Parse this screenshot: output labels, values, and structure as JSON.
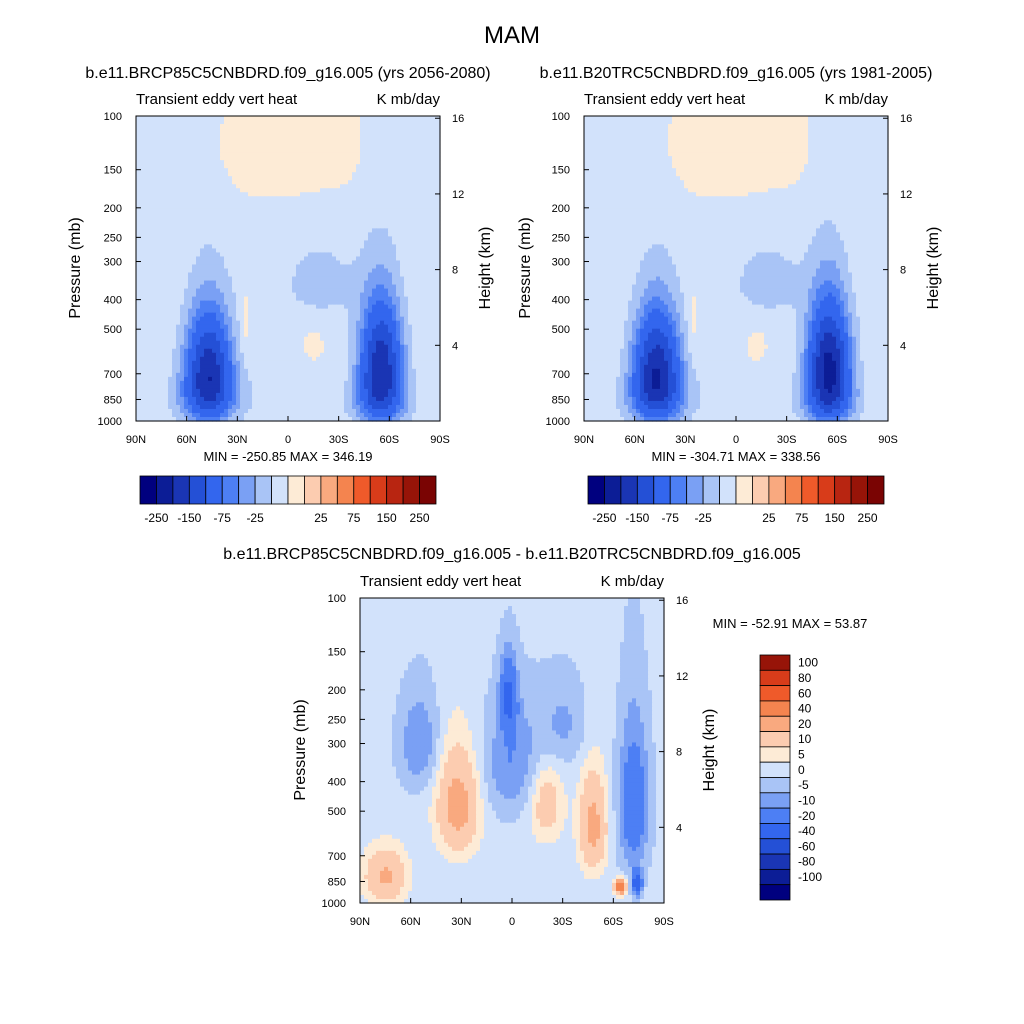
{
  "figure": {
    "title": "MAM"
  },
  "chart_data": [
    {
      "type": "heatmap",
      "id": "future",
      "title": "b.e11.BRCP85C5CNBDRD.f09_g16.005 (yrs 2056-2080)",
      "left_label": "Transient eddy vert heat",
      "right_label": "K mb/day",
      "xlabel": "",
      "ylabel": "Pressure (mb)",
      "ylabel_right": "Height (km)",
      "x_ticks": [
        "90N",
        "60N",
        "30N",
        "0",
        "30S",
        "60S",
        "90S"
      ],
      "x_range": [
        90,
        -90
      ],
      "y_ticks": [
        "100",
        "150",
        "200",
        "250",
        "300",
        "400",
        "500",
        "700",
        "850",
        "1000"
      ],
      "y_range_mb": [
        1000,
        100
      ],
      "height_ticks": [
        "4",
        "8",
        "12",
        "16"
      ],
      "stats": "MIN = -250.85  MAX = 346.19",
      "min": -250.85,
      "max": 346.19,
      "colorbar_labels": [
        "-250",
        "-150",
        "-75",
        "-25",
        "25",
        "75",
        "150",
        "250"
      ],
      "features": [
        {
          "desc": "NH mid-latitude minimum",
          "lat": 48,
          "p_mb": 700,
          "value": -210
        },
        {
          "desc": "SH mid-latitude minimum",
          "lat": -55,
          "p_mb": 650,
          "value": -220
        },
        {
          "desc": "tropical positive",
          "lat": -15,
          "p_mb": 580,
          "value": 12
        }
      ]
    },
    {
      "type": "heatmap",
      "id": "historical",
      "title": "b.e11.B20TRC5CNBDRD.f09_g16.005 (yrs 1981-2005)",
      "left_label": "Transient eddy vert heat",
      "right_label": "K mb/day",
      "xlabel": "",
      "ylabel": "Pressure (mb)",
      "ylabel_right": "Height (km)",
      "x_ticks": [
        "90N",
        "60N",
        "30N",
        "0",
        "30S",
        "60S",
        "90S"
      ],
      "x_range": [
        90,
        -90
      ],
      "y_ticks": [
        "100",
        "150",
        "200",
        "250",
        "300",
        "400",
        "500",
        "700",
        "850",
        "1000"
      ],
      "y_range_mb": [
        1000,
        100
      ],
      "height_ticks": [
        "4",
        "8",
        "12",
        "16"
      ],
      "stats": "MIN = -304.71  MAX = 338.56",
      "min": -304.71,
      "max": 338.56,
      "colorbar_labels": [
        "-250",
        "-150",
        "-75",
        "-25",
        "25",
        "75",
        "150",
        "250"
      ],
      "features": [
        {
          "desc": "NH mid-latitude minimum",
          "lat": 48,
          "p_mb": 700,
          "value": -220
        },
        {
          "desc": "SH mid-latitude minimum",
          "lat": -55,
          "p_mb": 650,
          "value": -260
        },
        {
          "desc": "tropical positive",
          "lat": -12,
          "p_mb": 560,
          "value": 12
        }
      ]
    },
    {
      "type": "heatmap",
      "id": "difference",
      "title": "b.e11.BRCP85C5CNBDRD.f09_g16.005 - b.e11.B20TRC5CNBDRD.f09_g16.005",
      "left_label": "Transient eddy vert heat",
      "right_label": "K mb/day",
      "xlabel": "",
      "ylabel": "Pressure (mb)",
      "ylabel_right": "Height (km)",
      "x_ticks": [
        "90N",
        "60N",
        "30N",
        "0",
        "30S",
        "60S",
        "90S"
      ],
      "x_range": [
        90,
        -90
      ],
      "y_ticks": [
        "100",
        "150",
        "200",
        "250",
        "300",
        "400",
        "500",
        "700",
        "850",
        "1000"
      ],
      "y_range_mb": [
        1000,
        100
      ],
      "height_ticks": [
        "4",
        "8",
        "12",
        "16"
      ],
      "stats": "MIN = -52.91  MAX =  53.87",
      "min": -52.91,
      "max": 53.87,
      "colorbar_labels": [
        "100",
        "80",
        "60",
        "40",
        "20",
        "10",
        "5",
        "0",
        "-5",
        "-10",
        "-20",
        "-40",
        "-60",
        "-80",
        "-100"
      ],
      "features": [
        {
          "desc": "NH subtropical increase",
          "lat": 32,
          "p_mb": 500,
          "value": 25
        },
        {
          "desc": "SH mid-latitude increase",
          "lat": -48,
          "p_mb": 550,
          "value": 22
        },
        {
          "desc": "upper equatorial decrease",
          "lat": 2,
          "p_mb": 200,
          "value": -22
        },
        {
          "desc": "SH polar-side decrease",
          "lat": -72,
          "p_mb": 500,
          "value": -20
        },
        {
          "desc": "Antarctic coastal surface maximum",
          "lat": -65,
          "p_mb": 880,
          "value": 53
        }
      ]
    }
  ],
  "colors": {
    "diverging18": [
      "#00007f",
      "#0c1d96",
      "#1a35b4",
      "#2450d6",
      "#3366ee",
      "#4d7ff4",
      "#7aa0f4",
      "#a9c4f6",
      "#d2e2fb",
      "#fdebd6",
      "#fcccb0",
      "#f9a97f",
      "#f4844f",
      "#ef5a2a",
      "#d83c1a",
      "#b82511",
      "#971408",
      "#7a0403"
    ]
  }
}
